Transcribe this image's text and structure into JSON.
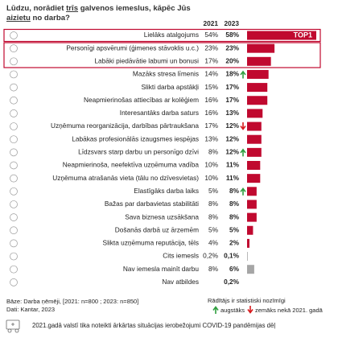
{
  "chart_data": {
    "type": "bar",
    "orientation": "horizontal",
    "title_lines": [
      [
        "Lūdzu, norādiet ",
        "trīs",
        " galvenos iemeslus, kāpēc Jūs"
      ],
      [
        "aizietu",
        " no darba?"
      ]
    ],
    "title_underline": [
      [
        false,
        true,
        false
      ],
      [
        true,
        false
      ]
    ],
    "categories": [
      "Lielāks atalgojums",
      "Personīgi apsvērumi (ģimenes stāvoklis u.c.)",
      "Labāki piedāvātie labumi un bonusi",
      "Mazāks stresa līmenis",
      "Slikti darba apstākļi",
      "Neapmierinošas attiecības ar kolēģiem",
      "Interesantāks darba saturs",
      "Uzņēmuma reorganizācija, darbības pārtraukšana",
      "Labākas profesionālās izaugsmes iespējas",
      "Līdzsvars starp darbu un personīgo dzīvi",
      "Neapmierinoša, neefektīva uzņēmuma vadība",
      "Uzņēmuma atrašanās vieta (tālu no dzīvesvietas)",
      "Elastīgāks darba laiks",
      "Bažas par darbavietas stabilitāti",
      "Sava biznesa uzsākšana",
      "Došanās darbā uz ārzemēm",
      "Slikta uzņēmuma reputācija, tēls",
      "Cits iemesls",
      "Nav iemesla mainīt darbu",
      "Nav atbildes"
    ],
    "series": [
      {
        "name": "2021",
        "values": [
          54,
          23,
          17,
          14,
          15,
          16,
          16,
          17,
          13,
          8,
          10,
          10,
          5,
          8,
          8,
          5,
          4,
          0.2,
          8,
          null
        ],
        "value_labels": [
          "54%",
          "23%",
          "17%",
          "14%",
          "15%",
          "16%",
          "16%",
          "17%",
          "13%",
          "8%",
          "10%",
          "10%",
          "5%",
          "8%",
          "8%",
          "5%",
          "4%",
          "0,2%",
          "8%",
          null
        ]
      },
      {
        "name": "2023",
        "values": [
          58,
          23,
          20,
          18,
          17,
          17,
          13,
          12,
          12,
          12,
          11,
          11,
          8,
          8,
          8,
          5,
          2,
          0.1,
          6,
          0.2
        ],
        "value_labels": [
          "58%",
          "23%",
          "20%",
          "18%",
          "17%",
          "17%",
          "13%",
          "12%",
          "12%",
          "12%",
          "11%",
          "11%",
          "8%",
          "8%",
          "8%",
          "5%",
          "2%",
          "0,1%",
          "6%",
          "0,2%"
        ],
        "bar_colors": [
          "#c0092f",
          "#c0092f",
          "#c0092f",
          "#c0092f",
          "#c0092f",
          "#c0092f",
          "#c0092f",
          "#c0092f",
          "#c0092f",
          "#c0092f",
          "#c0092f",
          "#c0092f",
          "#c0092f",
          "#c0092f",
          "#c0092f",
          "#c0092f",
          "#c0092f",
          "#a6a6a6",
          "#a6a6a6",
          "#a6a6a6"
        ]
      }
    ],
    "significance": [
      null,
      null,
      null,
      "up",
      null,
      null,
      null,
      "down",
      null,
      "up",
      null,
      null,
      "up",
      null,
      null,
      null,
      null,
      null,
      null,
      null
    ],
    "significance_colors": {
      "up": "#2e9e3e",
      "down": "#d7191c"
    },
    "annotation": "TOP1",
    "base_note": "Bāze: Darba ņēmēji, [2021: n=800 ; 2023: n=850]",
    "source": "Dati: Kantar, 2023",
    "legend_title": "Rādītājs ir statistiski nozīmīgi",
    "legend_up": "augstāks",
    "legend_down": "zemāks nekā 2021. gadā",
    "footnote": "2021.gadā valstī tika noteikti ārkārtas situācijas ierobežojumi COVID-19 pandēmijas dēļ"
  }
}
